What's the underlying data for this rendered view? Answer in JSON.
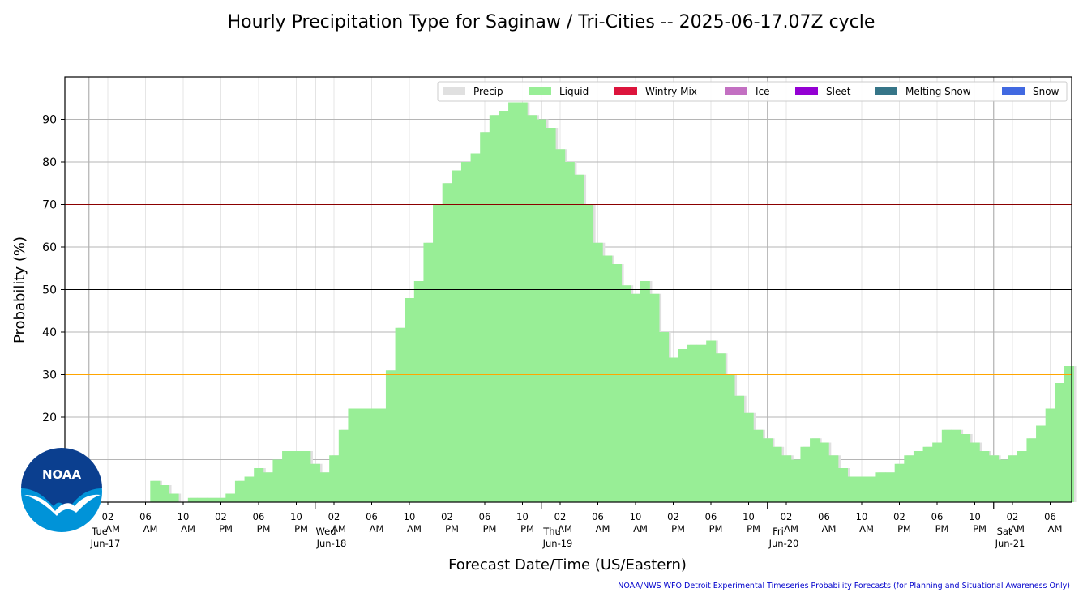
{
  "chart_data": {
    "type": "bar",
    "title": "Hourly Precipitation Type for Saginaw / Tri-Cities -- 2025-06-17.07Z cycle",
    "xlabel": "Forecast Date/Time (US/Eastern)",
    "ylabel": "Probability (%)",
    "ylim": [
      0,
      100
    ],
    "yticks": [
      20,
      30,
      40,
      50,
      60,
      70,
      80,
      90
    ],
    "reference_lines": [
      {
        "y": 30,
        "color": "#ffa500"
      },
      {
        "y": 50,
        "color": "#000000"
      },
      {
        "y": 70,
        "color": "#8b0000"
      }
    ],
    "grid": true,
    "legend_position": "top-right",
    "legend": [
      {
        "name": "Precip",
        "color": "#e0e0e0"
      },
      {
        "name": "Liquid",
        "color": "#98ee96"
      },
      {
        "name": "Wintry Mix",
        "color": "#dc143c"
      },
      {
        "name": "Ice",
        "color": "#c370c2"
      },
      {
        "name": "Sleet",
        "color": "#9400d3"
      },
      {
        "name": "Melting Snow",
        "color": "#367588"
      },
      {
        "name": "Snow",
        "color": "#4169e1"
      }
    ],
    "start_time": "Jun-17 03 AM",
    "step_hours": 1,
    "x_tick_labels": [
      {
        "hour": "02",
        "ampm": "AM",
        "day": "Tue",
        "date": "Jun-17"
      },
      {
        "hour": "06",
        "ampm": "AM"
      },
      {
        "hour": "10",
        "ampm": "AM"
      },
      {
        "hour": "02",
        "ampm": "PM"
      },
      {
        "hour": "06",
        "ampm": "PM"
      },
      {
        "hour": "10",
        "ampm": "PM"
      },
      {
        "hour": "02",
        "ampm": "AM",
        "day": "Wed",
        "date": "Jun-18"
      },
      {
        "hour": "06",
        "ampm": "AM"
      },
      {
        "hour": "10",
        "ampm": "AM"
      },
      {
        "hour": "02",
        "ampm": "PM"
      },
      {
        "hour": "06",
        "ampm": "PM"
      },
      {
        "hour": "10",
        "ampm": "PM"
      },
      {
        "hour": "02",
        "ampm": "AM",
        "day": "Thu",
        "date": "Jun-19"
      },
      {
        "hour": "06",
        "ampm": "AM"
      },
      {
        "hour": "10",
        "ampm": "AM"
      },
      {
        "hour": "02",
        "ampm": "PM"
      },
      {
        "hour": "06",
        "ampm": "PM"
      },
      {
        "hour": "10",
        "ampm": "PM"
      },
      {
        "hour": "02",
        "ampm": "AM",
        "day": "Fri",
        "date": "Jun-20"
      },
      {
        "hour": "06",
        "ampm": "AM"
      },
      {
        "hour": "10",
        "ampm": "AM"
      },
      {
        "hour": "02",
        "ampm": "PM"
      },
      {
        "hour": "06",
        "ampm": "PM"
      },
      {
        "hour": "10",
        "ampm": "PM"
      },
      {
        "hour": "02",
        "ampm": "AM",
        "day": "Sat",
        "date": "Jun-21"
      },
      {
        "hour": "06",
        "ampm": "AM"
      }
    ],
    "series": [
      {
        "name": "Precip",
        "values": [
          0,
          0,
          0,
          0,
          5,
          4,
          2,
          0,
          1,
          1,
          1,
          1,
          2,
          5,
          6,
          8,
          7,
          10,
          12,
          12,
          12,
          9,
          7,
          11,
          17,
          22,
          22,
          22,
          22,
          31,
          41,
          48,
          52,
          61,
          70,
          75,
          78,
          80,
          82,
          87,
          91,
          92,
          94,
          94,
          91,
          90,
          88,
          83,
          80,
          77,
          70,
          61,
          58,
          56,
          51,
          49,
          52,
          49,
          40,
          34,
          36,
          37,
          37,
          38,
          35,
          30,
          25,
          21,
          17,
          15,
          13,
          11,
          10,
          13,
          15,
          14,
          11,
          8,
          6,
          6,
          6,
          7,
          7,
          9,
          11,
          12,
          13,
          14,
          17,
          17,
          16,
          14,
          12,
          11,
          10,
          11,
          12,
          15,
          18,
          22,
          28,
          32
        ]
      },
      {
        "name": "Liquid",
        "values": [
          0,
          0,
          0,
          0,
          5,
          4,
          2,
          0,
          1,
          1,
          1,
          1,
          2,
          5,
          6,
          8,
          7,
          10,
          12,
          12,
          12,
          9,
          7,
          11,
          17,
          22,
          22,
          22,
          22,
          31,
          41,
          48,
          52,
          61,
          70,
          75,
          78,
          80,
          82,
          87,
          91,
          92,
          94,
          94,
          91,
          90,
          88,
          83,
          80,
          77,
          70,
          61,
          58,
          56,
          51,
          49,
          52,
          49,
          40,
          34,
          36,
          37,
          37,
          38,
          35,
          30,
          25,
          21,
          17,
          15,
          13,
          11,
          10,
          13,
          15,
          14,
          11,
          8,
          6,
          6,
          6,
          7,
          7,
          9,
          11,
          12,
          13,
          14,
          17,
          17,
          16,
          14,
          12,
          11,
          10,
          11,
          12,
          15,
          18,
          22,
          28,
          32
        ]
      }
    ]
  },
  "credit": "NOAA/NWS WFO Detroit Experimental Timeseries Probability Forecasts (for Planning and Situational Awareness Only)",
  "logo": {
    "text": "NOAA",
    "icon": "noaa-logo"
  }
}
